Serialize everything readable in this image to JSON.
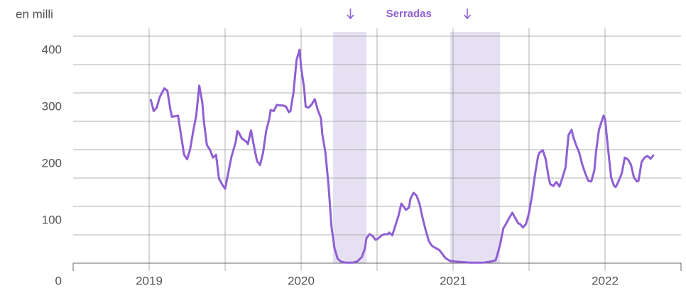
{
  "chart_data": {
    "type": "line",
    "y_axis_label": "en milli",
    "annotation": "Serradas",
    "shaded_ranges": [
      [
        2020.21,
        2020.43
      ],
      [
        2020.98,
        2021.31
      ]
    ],
    "xlim": [
      2018.5,
      2022.5
    ],
    "xticks": [
      2019,
      2020,
      2021,
      2022
    ],
    "minor_xticks": [
      2019.5,
      2020.5,
      2021.5
    ],
    "ylim": [
      0,
      400
    ],
    "yticks": [
      0,
      100,
      200,
      300,
      400
    ],
    "minor_yticks": [
      50,
      150,
      250,
      350
    ],
    "grid": true,
    "series": [
      {
        "color": "#8f5fd3",
        "x": [
          2019.01,
          2019.03,
          2019.05,
          2019.07,
          2019.1,
          2019.12,
          2019.14,
          2019.15,
          2019.17,
          2019.19,
          2019.21,
          2019.23,
          2019.25,
          2019.27,
          2019.29,
          2019.31,
          2019.33,
          2019.35,
          2019.36,
          2019.38,
          2019.4,
          2019.42,
          2019.44,
          2019.46,
          2019.48,
          2019.5,
          2019.52,
          2019.54,
          2019.57,
          2019.58,
          2019.59,
          2019.61,
          2019.64,
          2019.65,
          2019.67,
          2019.69,
          2019.71,
          2019.73,
          2019.75,
          2019.77,
          2019.79,
          2019.8,
          2019.82,
          2019.84,
          2019.86,
          2019.88,
          2019.9,
          2019.92,
          2019.93,
          2019.95,
          2019.97,
          2019.99,
          2020.0,
          2020.02,
          2020.03,
          2020.05,
          2020.07,
          2020.09,
          2020.11,
          2020.13,
          2020.14,
          2020.16,
          2020.18,
          2020.2,
          2020.22,
          2020.24,
          2020.26,
          2020.29,
          2020.34,
          2020.37,
          2020.4,
          2020.42,
          2020.43,
          2020.45,
          2020.47,
          2020.49,
          2020.51,
          2020.53,
          2020.55,
          2020.57,
          2020.58,
          2020.6,
          2020.62,
          2020.64,
          2020.66,
          2020.69,
          2020.71,
          2020.72,
          2020.74,
          2020.76,
          2020.78,
          2020.8,
          2020.82,
          2020.84,
          2020.86,
          2020.87,
          2020.89,
          2020.91,
          2020.93,
          2020.95,
          2020.98,
          2021.01,
          2021.11,
          2021.2,
          2021.25,
          2021.28,
          2021.29,
          2021.31,
          2021.33,
          2021.35,
          2021.37,
          2021.39,
          2021.41,
          2021.43,
          2021.44,
          2021.46,
          2021.48,
          2021.5,
          2021.52,
          2021.54,
          2021.56,
          2021.57,
          2021.59,
          2021.61,
          2021.63,
          2021.64,
          2021.66,
          2021.68,
          2021.7,
          2021.72,
          2021.74,
          2021.76,
          2021.78,
          2021.79,
          2021.81,
          2021.83,
          2021.85,
          2021.87,
          2021.89,
          2021.91,
          2021.93,
          2021.94,
          2021.96,
          2021.99,
          2022.0,
          2022.02,
          2022.04,
          2022.06,
          2022.07,
          2022.09,
          2022.11,
          2022.13,
          2022.15,
          2022.17,
          2022.19,
          2022.21,
          2022.22,
          2022.24,
          2022.26,
          2022.28,
          2022.3,
          2022.32
        ],
        "values": [
          289,
          268,
          274,
          293,
          308,
          304,
          270,
          258,
          259,
          260,
          226,
          191,
          183,
          201,
          233,
          260,
          313,
          283,
          251,
          208,
          200,
          186,
          191,
          149,
          139,
          131,
          158,
          186,
          214,
          233,
          230,
          220,
          214,
          210,
          234,
          206,
          180,
          173,
          195,
          233,
          254,
          270,
          268,
          279,
          278,
          278,
          276,
          266,
          268,
          301,
          358,
          376,
          345,
          308,
          276,
          274,
          280,
          289,
          270,
          256,
          226,
          195,
          139,
          64,
          26,
          8,
          3,
          1,
          1,
          3,
          11,
          26,
          44,
          51,
          48,
          41,
          44,
          49,
          51,
          51,
          54,
          49,
          66,
          83,
          105,
          94,
          98,
          114,
          124,
          119,
          104,
          79,
          58,
          39,
          31,
          29,
          26,
          23,
          16,
          9,
          4,
          3,
          1,
          1,
          3,
          5,
          14,
          33,
          61,
          70,
          80,
          89,
          79,
          70,
          69,
          63,
          69,
          89,
          120,
          158,
          189,
          195,
          199,
          183,
          149,
          139,
          136,
          143,
          135,
          151,
          169,
          226,
          235,
          223,
          208,
          195,
          174,
          158,
          145,
          144,
          164,
          195,
          235,
          260,
          254,
          201,
          151,
          136,
          134,
          145,
          158,
          186,
          183,
          174,
          151,
          144,
          145,
          178,
          186,
          189,
          184,
          191
        ]
      }
    ]
  }
}
